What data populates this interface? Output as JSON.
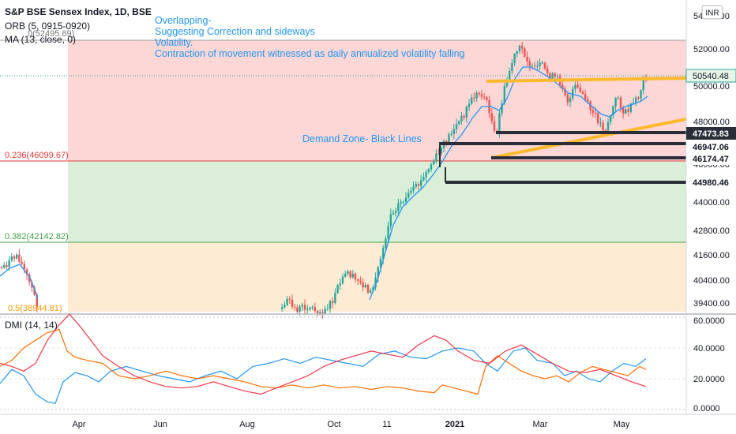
{
  "header": {
    "title": "S&P BSE Sensex Index, 1D, BSE",
    "orb": "ORB (5, 0915-0920)",
    "ma": "MA (13, close, 0)",
    "fib0": "0(52495.69)",
    "currency": "INR"
  },
  "annotations": {
    "line1": "Overlapping-",
    "line2": "Suggesting Correction and sideways",
    "line3": "Volatility.",
    "line4": "Contraction of movement witnessed as daily annualized volatility falling",
    "demand": "Demand Zone- Black Lines"
  },
  "fib_labels": {
    "f236": "0.236(46099.67)",
    "f382": "0.382(42142.82)",
    "f5": "0.5(38944.81)"
  },
  "price_axis": {
    "ticks": [
      "54000.00",
      "52000.00",
      "50000.00",
      "48000.00",
      "46000.00",
      "44000.00",
      "42800.00",
      "41600.00",
      "40400.00",
      "39400.00"
    ],
    "tags": [
      "50540.48",
      "47473.83",
      "46947.06",
      "46174.47",
      "44980.46"
    ]
  },
  "dmi": {
    "label": "DMI (14, 14)",
    "ticks": [
      "60.0000",
      "40.0000",
      "20.0000",
      "0.0000"
    ]
  },
  "time_axis": {
    "labels": [
      "Apr",
      "Jun",
      "Aug",
      "Oct",
      "11",
      "2021",
      "Mar",
      "May"
    ]
  },
  "colors": {
    "up": "#26a69a",
    "down": "#ef5350",
    "ma": "#2196f3",
    "trend": "#ffb92d",
    "annotation": "#2196f3",
    "fib236_zone": "#fcd7d6",
    "fib382_zone": "#dbefd8",
    "fib5_zone": "#fdebd3",
    "di_plus": "#2196f3",
    "di_minus": "#ff6d00",
    "adx": "#f23645"
  },
  "chart_data": {
    "type": "candlestick",
    "title": "S&P BSE Sensex Index, 1D, BSE",
    "price_range": [
      38900,
      54600
    ],
    "fib_levels": [
      {
        "label": "0",
        "value": 52495.69
      },
      {
        "label": "0.236",
        "value": 46099.67
      },
      {
        "label": "0.382",
        "value": 42142.82
      },
      {
        "label": "0.5",
        "value": 38944.81
      }
    ],
    "last_price": 50540.48,
    "demand_zone_levels": [
      47473.83,
      46947.06,
      46174.47,
      44980.46
    ],
    "key_points": [
      {
        "label": "Mar 2020",
        "close": 41600
      },
      {
        "label": "Oct",
        "close": 39900
      },
      {
        "label": "11 (Nov)",
        "close": 43500
      },
      {
        "label": "2021",
        "close": 47800
      },
      {
        "label": "Feb peak",
        "close": 52200
      },
      {
        "label": "Mar",
        "close": 49500
      },
      {
        "label": "May",
        "close": 50540.48
      }
    ],
    "indicators": [
      "ORB (5, 0915-0920)",
      "MA (13, close, 0)",
      "DMI (14, 14)"
    ],
    "dmi_range": [
      0,
      60
    ]
  }
}
